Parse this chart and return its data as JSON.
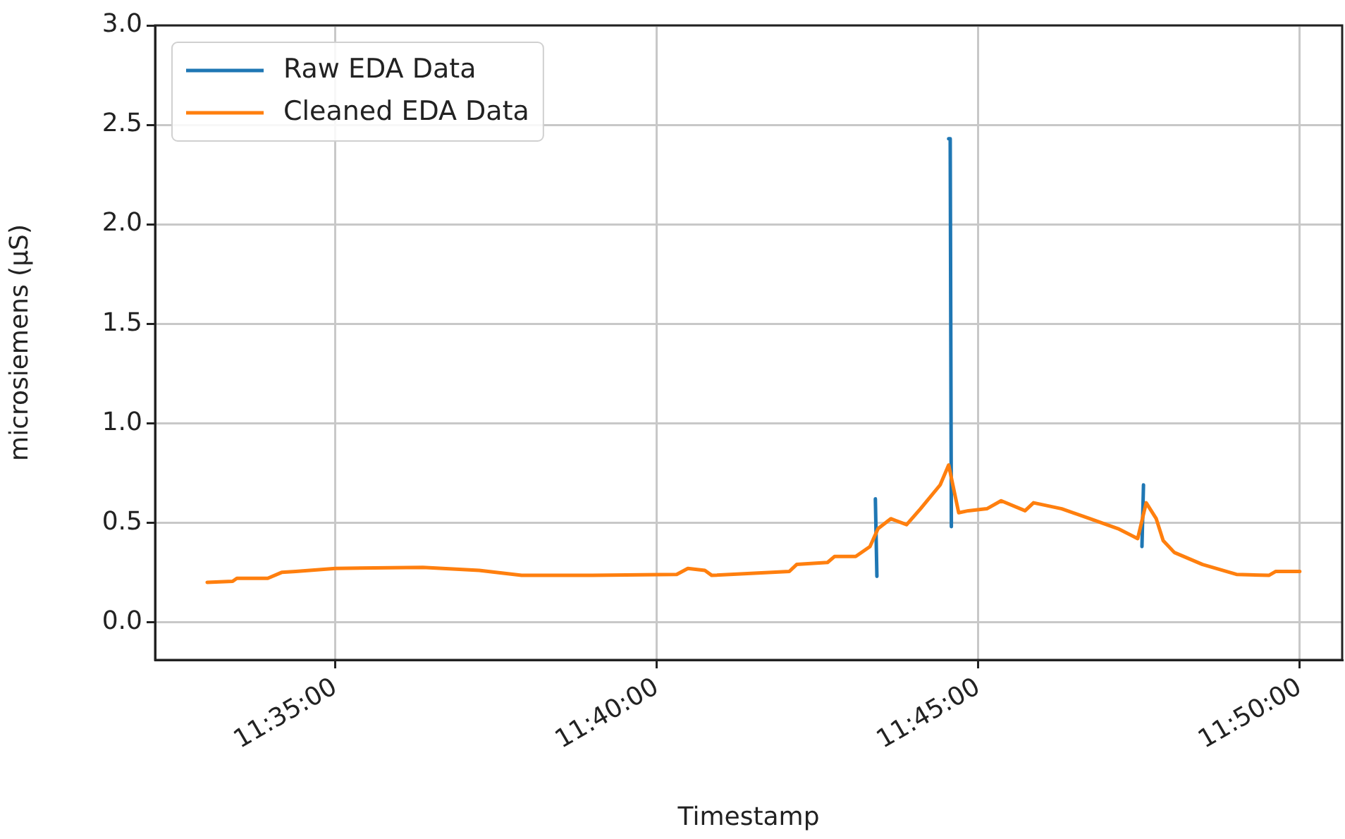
{
  "chart_data": {
    "type": "line",
    "xlabel": "Timestamp",
    "ylabel": "microsiemens (µS)",
    "xlim": [
      11.5366,
      11.8443
    ],
    "xticks": [
      {
        "value": 11.583333,
        "label": "11:35:00"
      },
      {
        "value": 11.666667,
        "label": "11:40:00"
      },
      {
        "value": 11.75,
        "label": "11:45:00"
      },
      {
        "value": 11.833333,
        "label": "11:50:00"
      }
    ],
    "ylim": [
      -0.19,
      3.0
    ],
    "yticks": [
      {
        "value": 0,
        "label": "0.0"
      },
      {
        "value": 0.5,
        "label": "0.5"
      },
      {
        "value": 1,
        "label": "1.0"
      },
      {
        "value": 1.5,
        "label": "1.5"
      },
      {
        "value": 2,
        "label": "2.0"
      },
      {
        "value": 2.5,
        "label": "2.5"
      },
      {
        "value": 3,
        "label": "3.0"
      }
    ],
    "grid": true,
    "legend": "top left",
    "marker": "none",
    "line_style": "solid",
    "series": [
      {
        "name": "Raw EDA Data",
        "color": "#1f77b4",
        "x": [
          11.7233,
          11.7237,
          11.73,
          11.7423,
          11.7427,
          11.743,
          11.76,
          11.7924,
          11.7928
        ],
        "values": [
          0.62,
          0.23,
          null,
          2.43,
          2.43,
          0.48,
          null,
          0.38,
          0.69
        ]
      },
      {
        "name": "Cleaned EDA Data",
        "color": "#ff7f0e",
        "x": [
          11.5501,
          11.5567,
          11.5578,
          11.5658,
          11.5694,
          11.5731,
          11.5833,
          11.606,
          11.6206,
          11.6316,
          11.6499,
          11.6718,
          11.6747,
          11.6791,
          11.6809,
          11.701,
          11.7029,
          11.7109,
          11.7127,
          11.7182,
          11.7219,
          11.724,
          11.7273,
          11.7314,
          11.735,
          11.7401,
          11.7423,
          11.7449,
          11.7474,
          11.7522,
          11.7559,
          11.7621,
          11.7643,
          11.7716,
          11.7789,
          11.7862,
          11.7913,
          11.7935,
          11.7961,
          11.7979,
          11.8008,
          11.8081,
          11.8169,
          11.8253,
          11.8271,
          11.8333
        ],
        "values": [
          0.2,
          0.205,
          0.22,
          0.22,
          0.25,
          0.255,
          0.27,
          0.275,
          0.26,
          0.235,
          0.235,
          0.24,
          0.27,
          0.26,
          0.235,
          0.255,
          0.29,
          0.3,
          0.33,
          0.33,
          0.38,
          0.47,
          0.52,
          0.49,
          0.57,
          0.69,
          0.79,
          0.55,
          0.56,
          0.57,
          0.61,
          0.56,
          0.6,
          0.57,
          0.52,
          0.47,
          0.42,
          0.6,
          0.52,
          0.41,
          0.35,
          0.29,
          0.24,
          0.235,
          0.255,
          0.255
        ]
      }
    ]
  }
}
